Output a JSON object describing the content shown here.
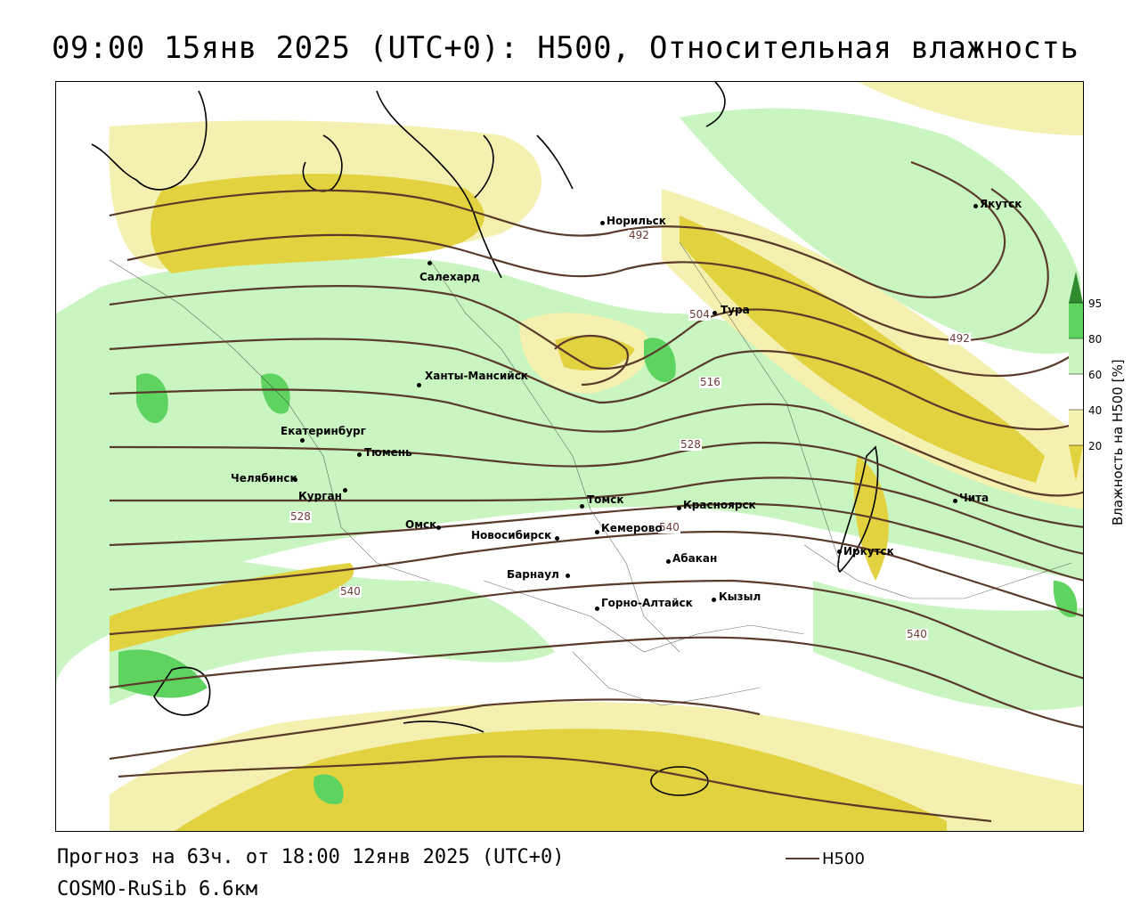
{
  "title": "09:00 15янв 2025 (UTC+0): H500, Относительная влажность",
  "footer": {
    "forecast": "Прогноз на 63ч. от 18:00 12янв 2025 (UTC+0)",
    "model": "COSMO-RuSib 6.6км"
  },
  "legend": {
    "h500_label": "H500",
    "line_color": "#5a3a2a"
  },
  "colorbar": {
    "title": "Влажность на H500 [%]",
    "ticks": [
      "95",
      "80",
      "60",
      "40",
      "20"
    ],
    "colors": {
      "c95": "#2e8b2e",
      "c80": "#5fd35f",
      "c60": "#c8f5c0",
      "c40": "#f3f0b0",
      "c20": "#e3d240"
    }
  },
  "cities": [
    {
      "name": "Норильск"
    },
    {
      "name": "Якутск"
    },
    {
      "name": "Салехард"
    },
    {
      "name": "Тура"
    },
    {
      "name": "Ханты-Мансийск"
    },
    {
      "name": "Екатеринбург"
    },
    {
      "name": "Тюмень"
    },
    {
      "name": "Челябинск"
    },
    {
      "name": "Курган"
    },
    {
      "name": "Омск"
    },
    {
      "name": "Новосибирск"
    },
    {
      "name": "Томск"
    },
    {
      "name": "Кемерово"
    },
    {
      "name": "Красноярск"
    },
    {
      "name": "Абакан"
    },
    {
      "name": "Барнаул"
    },
    {
      "name": "Горно-Алтайск"
    },
    {
      "name": "Кызыл"
    },
    {
      "name": "Иркутск"
    },
    {
      "name": "Чита"
    }
  ],
  "isolines": [
    "492",
    "492",
    "504",
    "516",
    "528",
    "528",
    "540",
    "540",
    "540"
  ]
}
